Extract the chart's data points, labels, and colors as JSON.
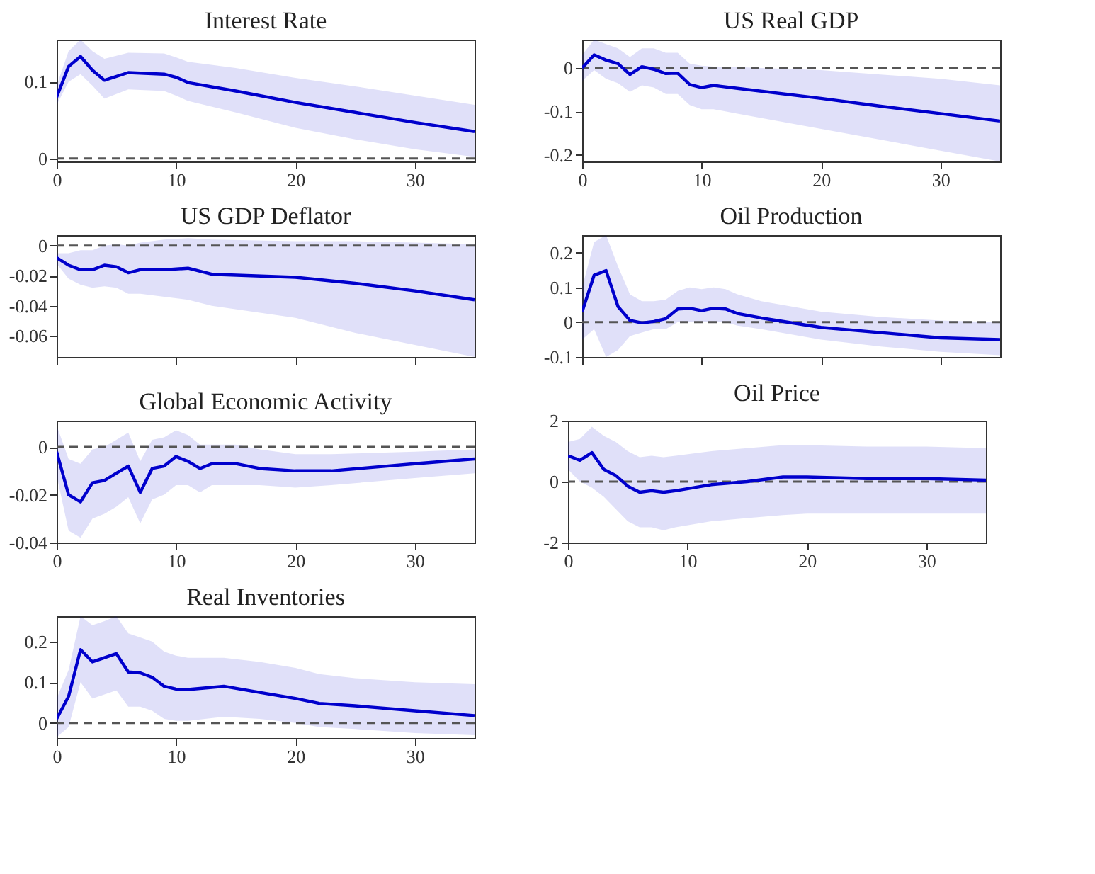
{
  "chart_data": [
    {
      "type": "line",
      "title": "Interest Rate",
      "xlim": [
        0,
        35
      ],
      "xticks": [
        0,
        10,
        20,
        30
      ],
      "ylim": [
        -0.004,
        0.155
      ],
      "yticks": [
        0,
        0.1
      ],
      "grid": false,
      "line_style": "solid",
      "marker": "none",
      "ref_lines": [
        {
          "axis": "y",
          "value": 0,
          "line_style": "dashed",
          "color": "#555555"
        }
      ],
      "series": [
        {
          "color": "#0000cc",
          "x": [
            0,
            1,
            2,
            3,
            4,
            6,
            9,
            10,
            11,
            15,
            20,
            25,
            30,
            35
          ],
          "values": [
            0.08,
            0.12,
            0.133,
            0.115,
            0.102,
            0.112,
            0.11,
            0.106,
            0.099,
            0.088,
            0.073,
            0.06,
            0.047,
            0.035
          ],
          "lower": [
            0.07,
            0.1,
            0.11,
            0.095,
            0.078,
            0.09,
            0.088,
            0.082,
            0.075,
            0.06,
            0.04,
            0.025,
            0.012,
            0.002
          ],
          "upper": [
            0.095,
            0.14,
            0.155,
            0.14,
            0.13,
            0.138,
            0.137,
            0.132,
            0.126,
            0.118,
            0.105,
            0.094,
            0.082,
            0.07
          ]
        }
      ]
    },
    {
      "type": "line",
      "title": "US Real GDP",
      "xlim": [
        0,
        35
      ],
      "xticks": [
        0,
        10,
        20,
        30
      ],
      "ylim": [
        -0.215,
        0.065
      ],
      "yticks": [
        -0.2,
        -0.1,
        0
      ],
      "grid": false,
      "line_style": "solid",
      "marker": "none",
      "ref_lines": [
        {
          "axis": "y",
          "value": 0,
          "line_style": "dashed",
          "color": "#555555"
        }
      ],
      "series": [
        {
          "color": "#0000cc",
          "x": [
            0,
            1,
            2,
            3,
            4,
            5,
            6,
            7,
            8,
            9,
            10,
            11,
            13,
            20,
            25,
            30,
            35
          ],
          "values": [
            0,
            0.03,
            0.018,
            0.01,
            -0.015,
            0.003,
            -0.003,
            -0.013,
            -0.012,
            -0.038,
            -0.045,
            -0.04,
            -0.047,
            -0.07,
            -0.088,
            -0.105,
            -0.122
          ],
          "lower": [
            -0.03,
            -0.005,
            -0.025,
            -0.035,
            -0.055,
            -0.04,
            -0.045,
            -0.06,
            -0.06,
            -0.085,
            -0.095,
            -0.095,
            -0.105,
            -0.14,
            -0.165,
            -0.19,
            -0.215
          ],
          "upper": [
            0.03,
            0.065,
            0.055,
            0.045,
            0.025,
            0.045,
            0.045,
            0.035,
            0.035,
            0.01,
            0.005,
            0.003,
            0.002,
            -0.005,
            -0.015,
            -0.025,
            -0.04
          ]
        }
      ]
    },
    {
      "type": "line",
      "title": "US GDP Deflator",
      "xlim": [
        0,
        35
      ],
      "xticks": [
        0,
        10,
        20,
        30
      ],
      "ylim": [
        -0.074,
        0.007
      ],
      "yticks": [
        -0.06,
        -0.04,
        -0.02,
        0
      ],
      "grid": false,
      "line_style": "solid",
      "marker": "none",
      "tick_labels": "y",
      "ref_lines": [
        {
          "axis": "y",
          "value": 0,
          "line_style": "dashed",
          "color": "#555555"
        }
      ],
      "series": [
        {
          "color": "#0000cc",
          "x": [
            0,
            1,
            2,
            3,
            4,
            5,
            6,
            7,
            9,
            11,
            13,
            20,
            25,
            30,
            35
          ],
          "values": [
            -0.008,
            -0.013,
            -0.016,
            -0.016,
            -0.013,
            -0.014,
            -0.018,
            -0.016,
            -0.016,
            -0.015,
            -0.019,
            -0.021,
            -0.025,
            -0.03,
            -0.036
          ],
          "lower": [
            -0.012,
            -0.022,
            -0.026,
            -0.028,
            -0.027,
            -0.028,
            -0.032,
            -0.032,
            -0.034,
            -0.036,
            -0.04,
            -0.048,
            -0.058,
            -0.066,
            -0.074
          ],
          "upper": [
            -0.005,
            -0.005,
            -0.003,
            -0.003,
            0,
            0.001,
            0,
            0.002,
            0.004,
            0.005,
            0.004,
            0.003,
            0.003,
            0.002,
            0.001
          ]
        }
      ]
    },
    {
      "type": "line",
      "title": "Oil Production",
      "xlim": [
        0,
        35
      ],
      "xticks": [
        0,
        10,
        20,
        30
      ],
      "ylim": [
        -0.1,
        0.25
      ],
      "yticks": [
        -0.1,
        0,
        0.1,
        0.2
      ],
      "grid": false,
      "line_style": "solid",
      "marker": "none",
      "tick_labels": "y",
      "ref_lines": [
        {
          "axis": "y",
          "value": 0,
          "line_style": "dashed",
          "color": "#555555"
        }
      ],
      "series": [
        {
          "color": "#0000cc",
          "x": [
            0,
            1,
            2,
            3,
            4,
            5,
            6,
            7,
            8,
            9,
            10,
            11,
            12,
            13,
            15,
            20,
            25,
            30,
            35
          ],
          "values": [
            0.03,
            0.135,
            0.148,
            0.045,
            0.005,
            -0.002,
            0.002,
            0.01,
            0.038,
            0.04,
            0.033,
            0.04,
            0.038,
            0.025,
            0.012,
            -0.015,
            -0.03,
            -0.045,
            -0.05
          ],
          "lower": [
            -0.05,
            -0.02,
            -0.1,
            -0.08,
            -0.04,
            -0.03,
            -0.02,
            -0.02,
            0,
            0,
            0,
            0,
            0,
            -0.01,
            -0.02,
            -0.05,
            -0.07,
            -0.085,
            -0.095
          ],
          "upper": [
            0.1,
            0.23,
            0.25,
            0.16,
            0.08,
            0.06,
            0.06,
            0.065,
            0.09,
            0.1,
            0.095,
            0.1,
            0.095,
            0.08,
            0.06,
            0.03,
            0.015,
            0.005,
            0.0
          ]
        }
      ]
    },
    {
      "type": "line",
      "title": "Global Economic Activity",
      "xlim": [
        0,
        35
      ],
      "xticks": [
        0,
        10,
        20,
        30
      ],
      "ylim": [
        -0.04,
        0.011
      ],
      "yticks": [
        -0.04,
        -0.02,
        0
      ],
      "grid": false,
      "line_style": "solid",
      "marker": "none",
      "ref_lines": [
        {
          "axis": "y",
          "value": 0,
          "line_style": "dashed",
          "color": "#555555"
        }
      ],
      "series": [
        {
          "color": "#0000cc",
          "x": [
            0,
            1,
            2,
            3,
            4,
            5,
            6,
            7,
            8,
            9,
            10,
            11,
            12,
            13,
            15,
            17,
            20,
            23,
            30,
            35
          ],
          "values": [
            -0.002,
            -0.02,
            -0.023,
            -0.015,
            -0.014,
            -0.011,
            -0.008,
            -0.019,
            -0.009,
            -0.008,
            -0.004,
            -0.006,
            -0.009,
            -0.007,
            -0.007,
            -0.009,
            -0.01,
            -0.01,
            -0.007,
            -0.005
          ],
          "lower": [
            -0.012,
            -0.035,
            -0.038,
            -0.03,
            -0.028,
            -0.025,
            -0.021,
            -0.032,
            -0.022,
            -0.02,
            -0.016,
            -0.016,
            -0.019,
            -0.016,
            -0.016,
            -0.016,
            -0.017,
            -0.016,
            -0.013,
            -0.011
          ],
          "upper": [
            0.009,
            -0.005,
            -0.007,
            -0.001,
            0,
            0.003,
            0.006,
            -0.006,
            0.003,
            0.004,
            0.007,
            0.005,
            0.001,
            0.001,
            0.001,
            -0.001,
            -0.003,
            -0.003,
            -0.002,
            -0.001
          ]
        }
      ]
    },
    {
      "type": "line",
      "title": "Oil Price",
      "xlim": [
        0,
        35
      ],
      "xticks": [
        0,
        10,
        20,
        30
      ],
      "ylim": [
        -2,
        2
      ],
      "yticks": [
        -2,
        0,
        2
      ],
      "grid": false,
      "line_style": "solid",
      "marker": "none",
      "ref_lines": [
        {
          "axis": "y",
          "value": 0,
          "line_style": "dashed",
          "color": "#555555"
        }
      ],
      "series": [
        {
          "color": "#0000cc",
          "x": [
            0,
            1,
            2,
            3,
            4,
            5,
            6,
            7,
            8,
            9,
            12,
            15,
            18,
            20,
            25,
            30,
            35
          ],
          "values": [
            0.85,
            0.7,
            0.95,
            0.4,
            0.2,
            -0.15,
            -0.35,
            -0.3,
            -0.35,
            -0.3,
            -0.1,
            0.0,
            0.15,
            0.15,
            0.1,
            0.1,
            0.05
          ],
          "lower": [
            0.4,
            0,
            -0.2,
            -0.5,
            -0.9,
            -1.3,
            -1.5,
            -1.5,
            -1.6,
            -1.5,
            -1.3,
            -1.2,
            -1.1,
            -1.05,
            -1.05,
            -1.05,
            -1.05
          ],
          "upper": [
            1.3,
            1.4,
            1.8,
            1.5,
            1.3,
            1.0,
            0.8,
            0.85,
            0.8,
            0.85,
            1.0,
            1.1,
            1.2,
            1.2,
            1.15,
            1.15,
            1.1
          ]
        }
      ]
    },
    {
      "type": "line",
      "title": "Real Inventories",
      "xlim": [
        0,
        35
      ],
      "xticks": [
        0,
        10,
        20,
        30
      ],
      "ylim": [
        -0.037,
        0.262
      ],
      "yticks": [
        0,
        0.1,
        0.2
      ],
      "grid": false,
      "line_style": "solid",
      "marker": "none",
      "ref_lines": [
        {
          "axis": "y",
          "value": 0,
          "line_style": "dashed",
          "color": "#555555"
        }
      ],
      "series": [
        {
          "color": "#0000cc",
          "x": [
            0,
            1,
            2,
            3,
            4,
            5,
            6,
            7,
            8,
            9,
            10,
            11,
            14,
            17,
            20,
            22,
            25,
            30,
            35
          ],
          "values": [
            0.01,
            0.065,
            0.18,
            0.15,
            0.16,
            0.17,
            0.125,
            0.123,
            0.112,
            0.09,
            0.083,
            0.082,
            0.09,
            0.075,
            0.06,
            0.048,
            0.042,
            0.03,
            0.018
          ],
          "lower": [
            -0.035,
            -0.01,
            0.1,
            0.06,
            0.07,
            0.08,
            0.04,
            0.04,
            0.03,
            0.01,
            0.005,
            0.005,
            0.015,
            0.01,
            0,
            -0.01,
            -0.015,
            -0.025,
            -0.03
          ],
          "upper": [
            0.06,
            0.13,
            0.262,
            0.24,
            0.25,
            0.262,
            0.22,
            0.21,
            0.2,
            0.175,
            0.165,
            0.16,
            0.16,
            0.15,
            0.135,
            0.12,
            0.11,
            0.1,
            0.095
          ]
        }
      ]
    }
  ]
}
